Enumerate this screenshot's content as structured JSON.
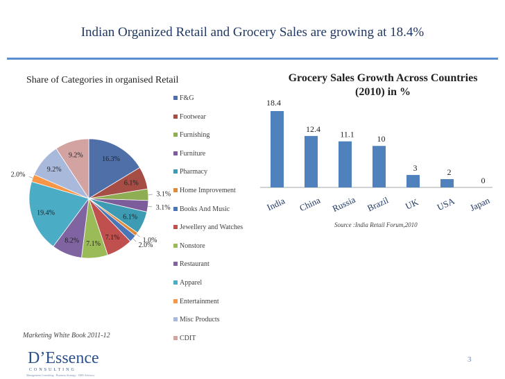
{
  "slide": {
    "title": "Indian Organized Retail and Grocery Sales  are growing at 18.4%",
    "footnote": "Marketing White Book 2011-12",
    "page_number": "3",
    "logo": {
      "name": "D’Essence",
      "tagline": "CONSULTING",
      "subline": "Management Consulting · Business Strategy · SME Advisory"
    }
  },
  "colors": {
    "title": "#1f3864",
    "rule": "#5b8ed0",
    "bar": "#4f81bd",
    "label": "#1f1f1f"
  },
  "chart_data": [
    {
      "type": "pie",
      "title": "Share of Categories in organised Retail",
      "legend_position": "right",
      "slices": [
        {
          "name": "F&G",
          "value": 16.3,
          "label": "16.3%",
          "color": "#4f6fa8"
        },
        {
          "name": "Footwear",
          "value": 6.1,
          "label": "6.1%",
          "color": "#a64d45"
        },
        {
          "name": "Furnishing",
          "value": 3.1,
          "label": "3.1%",
          "color": "#8fae54"
        },
        {
          "name": "Furniture",
          "value": 3.1,
          "label": "3.1%",
          "color": "#7c5c9b"
        },
        {
          "name": "Pharmacy",
          "value": 6.1,
          "label": "6.1%",
          "color": "#3d9bb3"
        },
        {
          "name": "Home Improvement",
          "value": 1.0,
          "label": "1.0%",
          "color": "#e08a3c"
        },
        {
          "name": "Books And Music",
          "value": 2.0,
          "label": "2.0%",
          "color": "#4a76b8"
        },
        {
          "name": "Jewellery and Watches",
          "value": 7.1,
          "label": "7.1%",
          "color": "#c0504d"
        },
        {
          "name": "Nonstore",
          "value": 7.1,
          "label": "7.1%",
          "color": "#9bbb59"
        },
        {
          "name": "Restaurant",
          "value": 8.2,
          "label": "8.2%",
          "color": "#8064a2"
        },
        {
          "name": "Apparel",
          "value": 19.4,
          "label": "19.4%",
          "color": "#4bacc6"
        },
        {
          "name": "Entertainment",
          "value": 2.0,
          "label": "2.0%",
          "color": "#f79646"
        },
        {
          "name": "Misc Products",
          "value": 9.2,
          "label": "9.2%",
          "color": "#a9b9dc"
        },
        {
          "name": "CDIT",
          "value": 9.2,
          "label": "9.2%",
          "color": "#d3a3a2"
        }
      ]
    },
    {
      "type": "bar",
      "title": "Grocery Sales Growth Across Countries (2010) in %",
      "categories": [
        "India",
        "China",
        "Russia",
        "Brazil",
        "UK",
        "USA",
        "Japan"
      ],
      "values": [
        18.4,
        12.4,
        11.1,
        10,
        3,
        2,
        0
      ],
      "value_labels": [
        "18.4",
        "12.4",
        "11.1",
        "10",
        "3",
        "2",
        "0"
      ],
      "ylim": [
        0,
        18.4
      ],
      "grid": false,
      "source": "Source :India Retail Forum,2010"
    }
  ]
}
